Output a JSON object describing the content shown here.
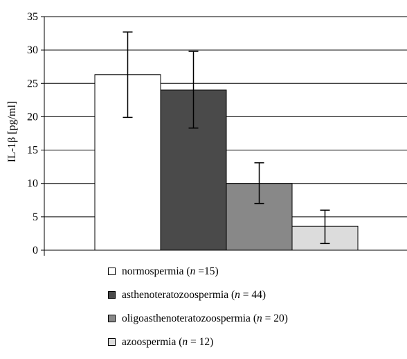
{
  "chart_data": {
    "type": "bar",
    "ylabel": "IL-1β [pg/ml]",
    "xlabel": "",
    "ylim": [
      0,
      35
    ],
    "yticks": [
      "0",
      "5",
      "10",
      "15",
      "20",
      "25",
      "30",
      "35"
    ],
    "grid": "horizontal",
    "legend_position": "bottom",
    "series": [
      {
        "name": "normospermia (n =15)",
        "value": 26.3,
        "error_low": 19.9,
        "error_high": 32.7,
        "color": "#ffffff"
      },
      {
        "name": "asthenoteratozoospermia (n = 44)",
        "value": 24.0,
        "error_low": 18.3,
        "error_high": 29.8,
        "color": "#4a4a4a"
      },
      {
        "name": "oligoasthenoteratozoospermia (n = 20)",
        "value": 10.0,
        "error_low": 7.0,
        "error_high": 13.1,
        "color": "#888888"
      },
      {
        "name": "azoospermia (n = 12)",
        "value": 3.6,
        "error_low": 1.0,
        "error_high": 6.0,
        "color": "#dcdcdc"
      }
    ]
  },
  "legend": [
    {
      "prefix": "normospermia (",
      "n": "n",
      "suffix": " =15)"
    },
    {
      "prefix": "asthenoteratozoospermia (",
      "n": "n",
      "suffix": " = 44)"
    },
    {
      "prefix": "oligoasthenoteratozoospermia (",
      "n": "n",
      "suffix": " = 20)"
    },
    {
      "prefix": "azoospermia (",
      "n": "n",
      "suffix": " = 12)"
    }
  ]
}
